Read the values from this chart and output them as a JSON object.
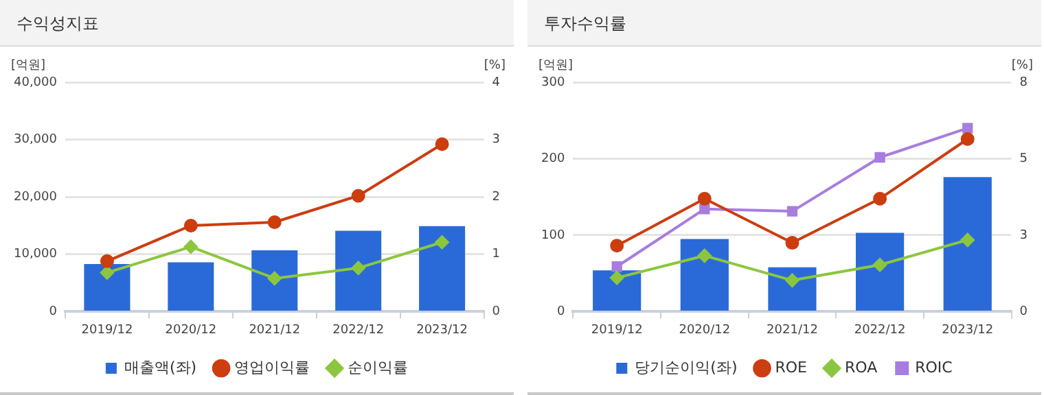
{
  "chart_data": [
    {
      "type": "bar",
      "title": "수익성지표",
      "ylabel": "[억원]",
      "y2label": "[%]",
      "categories": [
        "2019/12",
        "2020/12",
        "2021/12",
        "2022/12",
        "2023/12"
      ],
      "series": [
        {
          "name": "매출액(좌)",
          "color": "#2a6ad8",
          "values": [
            8300,
            8600,
            10700,
            14100,
            14900
          ]
        },
        {
          "name": "영업이익률",
          "type": "line",
          "axis": "y2",
          "marker": "circle",
          "color": "#cc3d10",
          "values": [
            0.88,
            1.5,
            1.56,
            2.02,
            2.92
          ]
        },
        {
          "name": "순이익률",
          "type": "line",
          "axis": "y2",
          "marker": "diamond",
          "color": "#8cc63f",
          "values": [
            0.68,
            1.13,
            0.58,
            0.76,
            1.21
          ]
        }
      ],
      "ylim": [
        0,
        40000
      ],
      "yticks": [
        0,
        {
          "value": 10000,
          "label": "10,000"
        },
        {
          "value": 20000,
          "label": "20,000"
        },
        {
          "value": 30000,
          "label": "30,000"
        },
        {
          "value": 40000,
          "label": "40,000"
        }
      ],
      "y2lim": [
        0,
        4
      ],
      "y2ticks": [
        0,
        1,
        2,
        3,
        4
      ],
      "grid": "y",
      "legend": "bottom"
    },
    {
      "type": "bar",
      "title": "투자수익률",
      "ylabel": "[억원]",
      "y2label": "[%]",
      "categories": [
        "2019/12",
        "2020/12",
        "2021/12",
        "2022/12",
        "2023/12"
      ],
      "series": [
        {
          "name": "당기순이익(좌)",
          "color": "#2a6ad8",
          "values": [
            54,
            95,
            58,
            103,
            176
          ]
        },
        {
          "name": "ROE",
          "type": "line",
          "axis": "y2",
          "marker": "circle",
          "color": "#cc3d10",
          "values": [
            2.3,
            3.94,
            2.4,
            3.94,
            6.02
          ]
        },
        {
          "name": "ROA",
          "type": "line",
          "axis": "y2",
          "marker": "diamond",
          "color": "#8cc63f",
          "values": [
            1.18,
            1.95,
            1.09,
            1.63,
            2.5
          ]
        },
        {
          "name": "ROIC",
          "type": "line",
          "axis": "y2",
          "marker": "square",
          "color": "#a77de0",
          "values": [
            1.57,
            3.58,
            3.5,
            5.38,
            6.4
          ]
        }
      ],
      "ylim": [
        0,
        300
      ],
      "yticks": [
        0,
        100,
        200,
        300
      ],
      "y2lim": [
        0,
        8
      ],
      "y2ticks": [
        0,
        {
          "value": 2.667,
          "label": "3"
        },
        {
          "value": 5.333,
          "label": "5"
        },
        8
      ],
      "grid": "y",
      "legend": "bottom"
    }
  ]
}
